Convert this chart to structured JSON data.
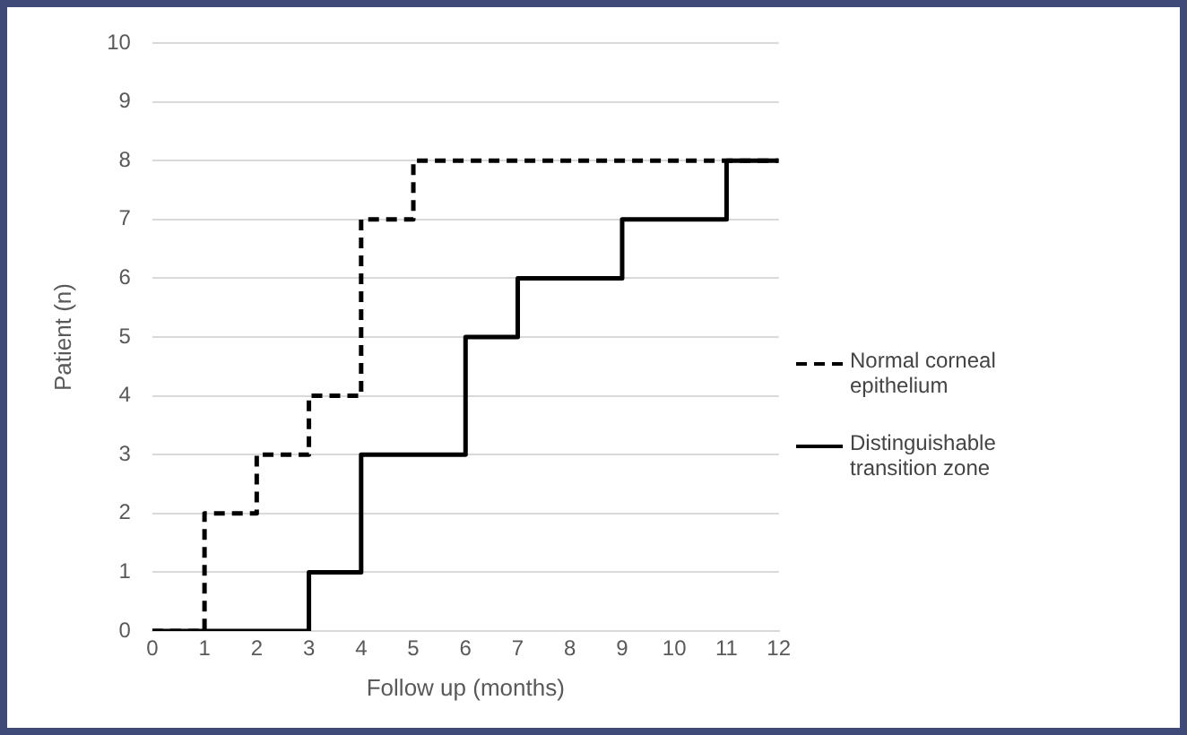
{
  "chart_data": {
    "type": "step",
    "xlabel": "Follow up (months)",
    "ylabel": "Patient (n)",
    "xlim": [
      0,
      12
    ],
    "xticks": [
      0,
      1,
      2,
      3,
      4,
      5,
      6,
      7,
      8,
      9,
      10,
      11,
      12
    ],
    "ylim": [
      0,
      10
    ],
    "yticks": [
      0,
      1,
      2,
      3,
      4,
      5,
      6,
      7,
      8,
      9,
      10
    ],
    "grid": "y",
    "legend": "right",
    "marker": "none",
    "series": [
      {
        "name": "Normal corneal epithelium",
        "color": "#000000",
        "line_style": "dashed",
        "x": [
          0,
          1,
          2,
          3,
          4,
          5,
          12
        ],
        "values": [
          0,
          2,
          3,
          4,
          7,
          8,
          8
        ]
      },
      {
        "name": "Distinguishable transition zone",
        "color": "#000000",
        "line_style": "solid",
        "x": [
          0,
          3,
          4,
          6,
          7,
          9,
          11,
          12
        ],
        "values": [
          0,
          1,
          3,
          5,
          6,
          7,
          8,
          8
        ]
      }
    ]
  }
}
